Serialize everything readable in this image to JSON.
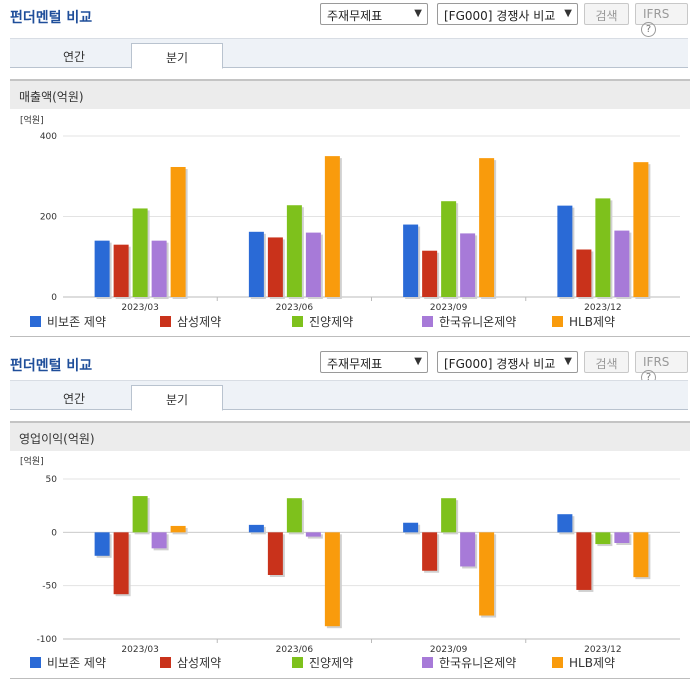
{
  "panels": [
    {
      "title": "펀더멘털 비교",
      "select1": "주재무제표",
      "select2": "[FG000] 경쟁사 비교",
      "search_label": "검색",
      "ifrs_label": "IFRS",
      "help_icon": "help-icon",
      "tabs": [
        {
          "label": "연간",
          "active": false
        },
        {
          "label": "분기",
          "active": true
        }
      ],
      "subtitle": "매출액(억원)"
    },
    {
      "title": "펀더멘털 비교",
      "select1": "주재무제표",
      "select2": "[FG000] 경쟁사 비교",
      "search_label": "검색",
      "ifrs_label": "IFRS",
      "help_icon": "help-icon",
      "tabs": [
        {
          "label": "연간",
          "active": false
        },
        {
          "label": "분기",
          "active": true
        }
      ],
      "subtitle": "영업이익(억원)"
    }
  ],
  "chart_data": [
    {
      "type": "bar",
      "ylabel": "[억원]",
      "categories": [
        "2023/03",
        "2023/06",
        "2023/09",
        "2023/12"
      ],
      "ylim": [
        0,
        400
      ],
      "yticks": [
        0,
        200,
        400
      ],
      "grid": true,
      "legend": "bottom",
      "series": [
        {
          "name": "비보존 제약",
          "color": "#2a6ad6",
          "values": [
            140,
            162,
            180,
            227
          ]
        },
        {
          "name": "삼성제약",
          "color": "#c9321b",
          "values": [
            130,
            148,
            115,
            118
          ]
        },
        {
          "name": "진양제약",
          "color": "#7ec11c",
          "values": [
            220,
            228,
            238,
            245
          ]
        },
        {
          "name": "한국유니온제약",
          "color": "#a77ad8",
          "values": [
            140,
            160,
            158,
            165
          ]
        },
        {
          "name": "HLB제약",
          "color": "#f99b0c",
          "values": [
            323,
            350,
            345,
            335
          ]
        }
      ]
    },
    {
      "type": "bar",
      "ylabel": "[억원]",
      "categories": [
        "2023/03",
        "2023/06",
        "2023/09",
        "2023/12"
      ],
      "ylim": [
        -100,
        50
      ],
      "yticks": [
        50,
        0,
        -50,
        -100
      ],
      "grid": true,
      "legend": "bottom",
      "series": [
        {
          "name": "비보존 제약",
          "color": "#2a6ad6",
          "values": [
            -22,
            7,
            9,
            17
          ]
        },
        {
          "name": "삼성제약",
          "color": "#c9321b",
          "values": [
            -58,
            -40,
            -36,
            -54
          ]
        },
        {
          "name": "진양제약",
          "color": "#7ec11c",
          "values": [
            34,
            32,
            32,
            -11
          ]
        },
        {
          "name": "한국유니온제약",
          "color": "#a77ad8",
          "values": [
            -15,
            -4,
            -32,
            -10
          ]
        },
        {
          "name": "HLB제약",
          "color": "#f99b0c",
          "values": [
            6,
            -88,
            -78,
            -42
          ]
        }
      ]
    }
  ]
}
